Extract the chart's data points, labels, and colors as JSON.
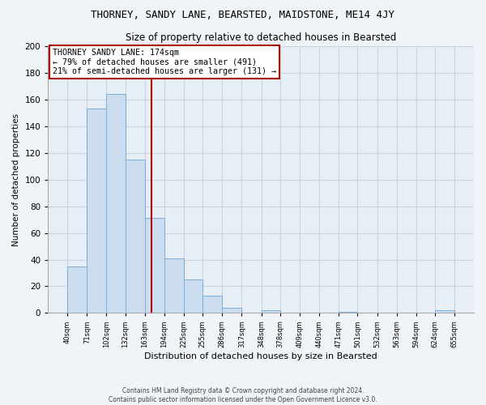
{
  "title": "THORNEY, SANDY LANE, BEARSTED, MAIDSTONE, ME14 4JY",
  "subtitle": "Size of property relative to detached houses in Bearsted",
  "xlabel": "Distribution of detached houses by size in Bearsted",
  "ylabel": "Number of detached properties",
  "bar_edges": [
    40,
    71,
    102,
    132,
    163,
    194,
    225,
    255,
    286,
    317,
    348,
    378,
    409,
    440,
    471,
    501,
    532,
    563,
    594,
    624,
    655
  ],
  "bar_heights": [
    35,
    153,
    164,
    115,
    71,
    41,
    25,
    13,
    4,
    0,
    2,
    0,
    0,
    0,
    1,
    0,
    0,
    0,
    0,
    2
  ],
  "tick_labels": [
    "40sqm",
    "71sqm",
    "102sqm",
    "132sqm",
    "163sqm",
    "194sqm",
    "225sqm",
    "255sqm",
    "286sqm",
    "317sqm",
    "348sqm",
    "378sqm",
    "409sqm",
    "440sqm",
    "471sqm",
    "501sqm",
    "532sqm",
    "563sqm",
    "594sqm",
    "624sqm",
    "655sqm"
  ],
  "bar_color": "#ccddf0",
  "bar_edge_color": "#7aaedb",
  "vline_x": 174,
  "vline_color": "#aa0000",
  "annotation_box_edge": "#aa0000",
  "annotation_lines": [
    "THORNEY SANDY LANE: 174sqm",
    "← 79% of detached houses are smaller (491)",
    "21% of semi-detached houses are larger (131) →"
  ],
  "ylim": [
    0,
    200
  ],
  "yticks": [
    0,
    20,
    40,
    60,
    80,
    100,
    120,
    140,
    160,
    180,
    200
  ],
  "background_color": "#f0f4f8",
  "plot_bg_color": "#e8eef5",
  "grid_color": "#c8d4e0",
  "footnote1": "Contains HM Land Registry data © Crown copyright and database right 2024.",
  "footnote2": "Contains public sector information licensed under the Open Government Licence v3.0."
}
